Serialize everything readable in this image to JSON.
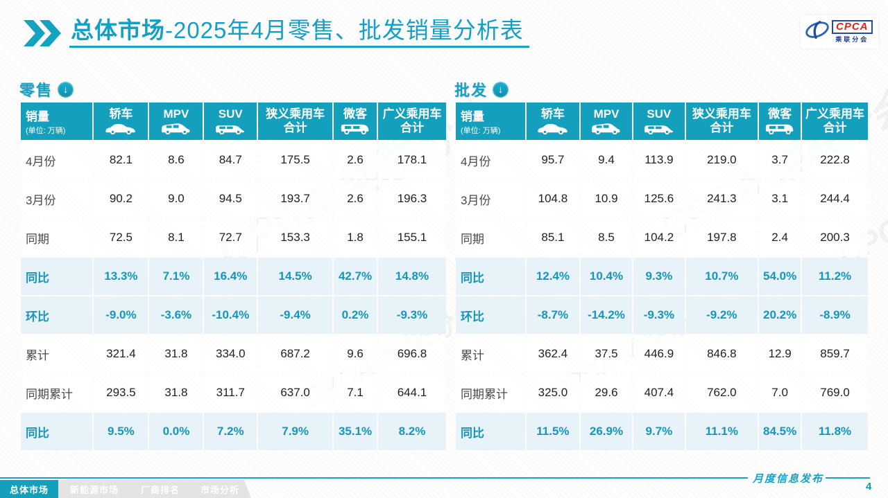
{
  "title": {
    "highlight": "总体市场",
    "rest": "-2025年4月零售、批发销量分析表"
  },
  "logo": {
    "acronym": "CPCA",
    "name": "乘联分会",
    "icon": "cpca-swoosh-icon"
  },
  "watermark": "CPCA 乘联分会",
  "colors": {
    "accent_teal": "#14A0BD",
    "title_teal": "#149FC4",
    "pct_row_bg": "#E7F3F8",
    "pct_text": "#1795BA",
    "logo_blue": "#1E4DA1",
    "logo_red": "#D9251C",
    "inactive_tab_bg": "#E4E4E4"
  },
  "tables": [
    {
      "section_label": "零售",
      "section_icon": "circle-down-arrow-icon",
      "unit_label": "销量",
      "unit_sub": "(单位: 万辆)",
      "columns": [
        {
          "label": "轿车",
          "icon": "sedan"
        },
        {
          "label": "MPV",
          "icon": "mpv"
        },
        {
          "label": "SUV",
          "icon": "suv"
        },
        {
          "label": "狭义乘用车",
          "sub": "合计"
        },
        {
          "label": "微客",
          "icon": "microvan"
        },
        {
          "label": "广义乘用车",
          "sub": "合计"
        }
      ],
      "rows": [
        {
          "label": "4月份",
          "type": "data",
          "values": [
            "82.1",
            "8.6",
            "84.7",
            "175.5",
            "2.6",
            "178.1"
          ]
        },
        {
          "label": "3月份",
          "type": "data",
          "values": [
            "90.2",
            "9.0",
            "94.5",
            "193.7",
            "2.6",
            "196.3"
          ]
        },
        {
          "label": "同期",
          "type": "data",
          "values": [
            "72.5",
            "8.1",
            "72.7",
            "153.3",
            "1.8",
            "155.1"
          ]
        },
        {
          "label": "同比",
          "type": "pct",
          "values": [
            "13.3%",
            "7.1%",
            "16.4%",
            "14.5%",
            "42.7%",
            "14.8%"
          ]
        },
        {
          "label": "环比",
          "type": "pct",
          "values": [
            "-9.0%",
            "-3.6%",
            "-10.4%",
            "-9.4%",
            "0.2%",
            "-9.3%"
          ]
        },
        {
          "label": "累计",
          "type": "data",
          "values": [
            "321.4",
            "31.8",
            "334.0",
            "687.2",
            "9.6",
            "696.8"
          ]
        },
        {
          "label": "同期累计",
          "type": "data",
          "values": [
            "293.5",
            "31.8",
            "311.7",
            "637.0",
            "7.1",
            "644.1"
          ]
        },
        {
          "label": "同比",
          "type": "pct",
          "values": [
            "9.5%",
            "0.0%",
            "7.2%",
            "7.9%",
            "35.1%",
            "8.2%"
          ]
        }
      ]
    },
    {
      "section_label": "批发",
      "section_icon": "circle-down-arrow-icon",
      "unit_label": "销量",
      "unit_sub": "(单位: 万辆)",
      "columns": [
        {
          "label": "轿车",
          "icon": "sedan"
        },
        {
          "label": "MPV",
          "icon": "mpv"
        },
        {
          "label": "SUV",
          "icon": "suv"
        },
        {
          "label": "狭义乘用车",
          "sub": "合计"
        },
        {
          "label": "微客",
          "icon": "microvan"
        },
        {
          "label": "广义乘用车",
          "sub": "合计"
        }
      ],
      "rows": [
        {
          "label": "4月份",
          "type": "data",
          "values": [
            "95.7",
            "9.4",
            "113.9",
            "219.0",
            "3.7",
            "222.8"
          ]
        },
        {
          "label": "3月份",
          "type": "data",
          "values": [
            "104.8",
            "10.9",
            "125.6",
            "241.3",
            "3.1",
            "244.4"
          ]
        },
        {
          "label": "同期",
          "type": "data",
          "values": [
            "85.1",
            "8.5",
            "104.2",
            "197.8",
            "2.4",
            "200.3"
          ]
        },
        {
          "label": "同比",
          "type": "pct",
          "values": [
            "12.4%",
            "10.4%",
            "9.3%",
            "10.7%",
            "54.0%",
            "11.2%"
          ]
        },
        {
          "label": "环比",
          "type": "pct",
          "values": [
            "-8.7%",
            "-14.2%",
            "-9.3%",
            "-9.2%",
            "20.2%",
            "-8.9%"
          ]
        },
        {
          "label": "累计",
          "type": "data",
          "values": [
            "362.4",
            "37.5",
            "446.9",
            "846.8",
            "12.9",
            "859.7"
          ]
        },
        {
          "label": "同期累计",
          "type": "data",
          "values": [
            "325.0",
            "29.6",
            "407.4",
            "762.0",
            "7.0",
            "769.0"
          ]
        },
        {
          "label": "同比",
          "type": "pct",
          "values": [
            "11.5%",
            "26.9%",
            "9.7%",
            "11.1%",
            "84.5%",
            "11.8%"
          ]
        }
      ]
    }
  ],
  "footer": {
    "tabs": [
      {
        "label": "总体市场",
        "active": true
      },
      {
        "label": "新能源市场",
        "active": false
      },
      {
        "label": "厂商排名",
        "active": false
      },
      {
        "label": "市场分析",
        "active": false
      }
    ],
    "publication": "月度信息发布",
    "page": "4"
  }
}
